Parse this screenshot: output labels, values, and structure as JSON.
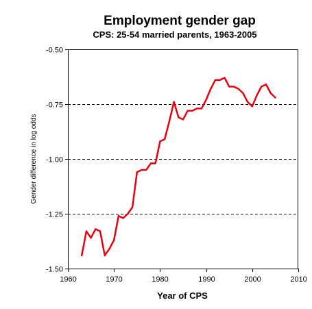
{
  "chart_data": {
    "type": "line",
    "title": "Employment gender gap",
    "subtitle": "CPS: 25-54 married parents, 1963-2005",
    "xlabel": "Year of CPS",
    "ylabel": "Gender difference in log odds",
    "xlim": [
      1960,
      2010
    ],
    "ylim": [
      -1.5,
      -0.5
    ],
    "xticks": [
      1960,
      1970,
      1980,
      1990,
      2000,
      2010
    ],
    "yticks": [
      -1.5,
      -1.25,
      -1.0,
      -0.75,
      -0.5
    ],
    "xtick_labels": [
      "1960",
      "1970",
      "1980",
      "1990",
      "2000",
      "2010"
    ],
    "ytick_labels": [
      "-1.50",
      "-1.25",
      "-1.00",
      "-0.75",
      "-0.50"
    ],
    "grid": "horizontal dashed",
    "legend": "none",
    "line_color": "#e8000f",
    "series": [
      {
        "x": [
          1963,
          1964,
          1965,
          1966,
          1967,
          1968,
          1969,
          1970,
          1971,
          1972,
          1973,
          1974,
          1975,
          1976,
          1977,
          1978,
          1979,
          1980,
          1981,
          1982,
          1983,
          1984,
          1985,
          1986,
          1987,
          1988,
          1989,
          1990,
          1991,
          1992,
          1993,
          1994,
          1995,
          1996,
          1997,
          1998,
          1999,
          2000,
          2001,
          2002,
          2003,
          2004,
          2005
        ],
        "values": [
          -1.44,
          -1.33,
          -1.36,
          -1.32,
          -1.33,
          -1.44,
          -1.41,
          -1.37,
          -1.26,
          -1.27,
          -1.25,
          -1.22,
          -1.06,
          -1.05,
          -1.05,
          -1.02,
          -1.02,
          -0.92,
          -0.91,
          -0.83,
          -0.74,
          -0.81,
          -0.82,
          -0.78,
          -0.78,
          -0.77,
          -0.77,
          -0.73,
          -0.68,
          -0.64,
          -0.64,
          -0.63,
          -0.67,
          -0.67,
          -0.68,
          -0.7,
          -0.74,
          -0.76,
          -0.71,
          -0.67,
          -0.66,
          -0.7,
          -0.72
        ]
      }
    ]
  }
}
